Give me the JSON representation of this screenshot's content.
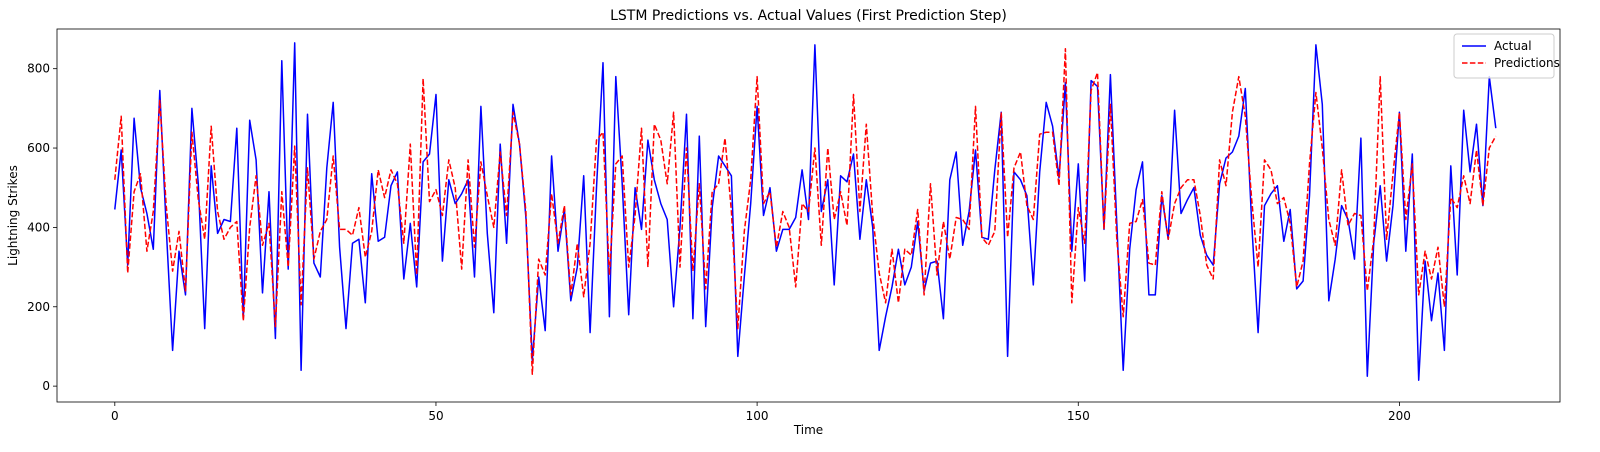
{
  "chart_data": {
    "type": "line",
    "title": "LSTM Predictions vs. Actual Values (First Prediction Step)",
    "xlabel": "Time",
    "ylabel": "Lightning Strikes",
    "xlim": [
      -9,
      225
    ],
    "ylim": [
      -40,
      900
    ],
    "xticks": [
      0,
      50,
      100,
      150,
      200
    ],
    "yticks": [
      0,
      200,
      400,
      600,
      800
    ],
    "grid": false,
    "legend_position": "top-right",
    "series": [
      {
        "name": "Actual",
        "color": "#0000ff",
        "dash": "solid",
        "values": [
          445,
          595,
          305,
          675,
          500,
          435,
          345,
          745,
          400,
          90,
          340,
          230,
          700,
          510,
          145,
          555,
          385,
          420,
          415,
          650,
          170,
          670,
          570,
          235,
          490,
          120,
          820,
          295,
          865,
          40,
          685,
          310,
          275,
          550,
          715,
          350,
          145,
          360,
          370,
          210,
          535,
          365,
          375,
          505,
          540,
          270,
          410,
          250,
          565,
          585,
          735,
          315,
          520,
          460,
          485,
          520,
          275,
          705,
          385,
          185,
          610,
          360,
          710,
          610,
          425,
          65,
          275,
          140,
          580,
          340,
          445,
          215,
          300,
          530,
          135,
          500,
          815,
          175,
          780,
          510,
          180,
          500,
          395,
          620,
          520,
          460,
          420,
          200,
          400,
          685,
          170,
          630,
          150,
          450,
          580,
          555,
          530,
          75,
          275,
          460,
          705,
          430,
          500,
          340,
          395,
          395,
          425,
          545,
          420,
          860,
          440,
          520,
          255,
          530,
          515,
          585,
          370,
          520,
          400,
          90,
          175,
          250,
          345,
          255,
          300,
          415,
          240,
          310,
          315,
          170,
          520,
          590,
          355,
          440,
          595,
          375,
          370,
          545,
          690,
          75,
          540,
          520,
          480,
          255,
          540,
          715,
          655,
          525,
          765,
          340,
          560,
          265,
          770,
          755,
          395,
          785,
          410,
          40,
          345,
          495,
          565,
          230,
          230,
          480,
          370,
          695,
          435,
          470,
          500,
          380,
          330,
          305,
          510,
          575,
          590,
          630,
          750,
          410,
          135,
          455,
          485,
          505,
          365,
          445,
          245,
          265,
          480,
          860,
          710,
          215,
          320,
          455,
          420,
          320,
          625,
          25,
          360,
          505,
          315,
          455,
          690,
          340,
          585,
          15,
          315,
          165,
          285,
          90,
          555,
          280,
          695,
          540,
          660,
          455,
          780,
          650
        ]
      },
      {
        "name": "Predictions",
        "color": "#ff0000",
        "dash": "dashed",
        "values": [
          520,
          680,
          285,
          490,
          535,
          340,
          440,
          720,
          455,
          290,
          390,
          240,
          640,
          470,
          370,
          655,
          440,
          370,
          400,
          415,
          165,
          400,
          530,
          355,
          410,
          150,
          490,
          300,
          605,
          205,
          550,
          320,
          390,
          420,
          580,
          395,
          395,
          380,
          450,
          325,
          390,
          545,
          475,
          545,
          510,
          360,
          610,
          280,
          775,
          465,
          495,
          430,
          570,
          500,
          295,
          570,
          350,
          565,
          480,
          400,
          590,
          430,
          690,
          610,
          440,
          30,
          320,
          280,
          485,
          360,
          455,
          230,
          360,
          225,
          360,
          620,
          640,
          280,
          560,
          580,
          300,
          430,
          650,
          300,
          660,
          620,
          510,
          690,
          300,
          600,
          290,
          510,
          245,
          490,
          510,
          625,
          440,
          145,
          390,
          520,
          780,
          460,
          490,
          350,
          440,
          400,
          250,
          460,
          440,
          600,
          355,
          600,
          420,
          490,
          405,
          735,
          440,
          660,
          430,
          285,
          210,
          345,
          210,
          345,
          330,
          445,
          230,
          510,
          280,
          415,
          320,
          425,
          420,
          395,
          705,
          375,
          355,
          390,
          690,
          375,
          550,
          590,
          455,
          420,
          635,
          640,
          640,
          505,
          850,
          210,
          450,
          360,
          745,
          790,
          395,
          710,
          370,
          175,
          410,
          415,
          470,
          310,
          305,
          490,
          370,
          460,
          500,
          520,
          520,
          430,
          305,
          270,
          570,
          505,
          690,
          780,
          680,
          470,
          300,
          570,
          545,
          460,
          475,
          410,
          250,
          315,
          560,
          740,
          600,
          420,
          355,
          545,
          405,
          435,
          430,
          240,
          370,
          780,
          370,
          535,
          690,
          420,
          560,
          230,
          340,
          270,
          350,
          200,
          475,
          450,
          530,
          460,
          595,
          455,
          600,
          630
        ]
      }
    ]
  }
}
